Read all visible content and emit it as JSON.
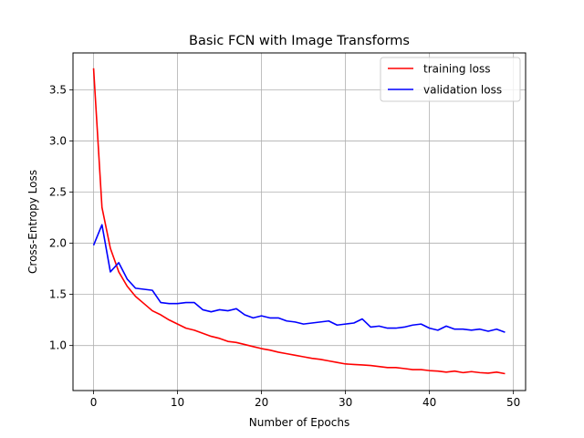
{
  "chart_data": {
    "type": "line",
    "title": "Basic FCN with Image Transforms",
    "xlabel": "Number of Epochs",
    "ylabel": "Cross-Entropy Loss",
    "xlim": [
      -2.45,
      51.45
    ],
    "ylim": [
      0.56,
      3.86
    ],
    "xticks": [
      0,
      10,
      20,
      30,
      40,
      50
    ],
    "yticks": [
      1.0,
      1.5,
      2.0,
      2.5,
      3.0,
      3.5
    ],
    "xtick_labels": [
      "0",
      "10",
      "20",
      "30",
      "40",
      "50"
    ],
    "ytick_labels": [
      "1.0",
      "1.5",
      "2.0",
      "2.5",
      "3.0",
      "3.5"
    ],
    "grid": true,
    "legend_position": "top-right",
    "x": [
      0,
      1,
      2,
      3,
      4,
      5,
      6,
      7,
      8,
      9,
      10,
      11,
      12,
      13,
      14,
      15,
      16,
      17,
      18,
      19,
      20,
      21,
      22,
      23,
      24,
      25,
      26,
      27,
      28,
      29,
      30,
      31,
      32,
      33,
      34,
      35,
      36,
      37,
      38,
      39,
      40,
      41,
      42,
      43,
      44,
      45,
      46,
      47,
      48,
      49
    ],
    "series": [
      {
        "name": "training loss",
        "color": "#ff0000",
        "values": [
          3.71,
          2.35,
          1.95,
          1.72,
          1.58,
          1.48,
          1.41,
          1.34,
          1.3,
          1.25,
          1.21,
          1.17,
          1.15,
          1.12,
          1.09,
          1.07,
          1.04,
          1.03,
          1.01,
          0.99,
          0.97,
          0.955,
          0.935,
          0.92,
          0.905,
          0.89,
          0.875,
          0.865,
          0.85,
          0.835,
          0.82,
          0.815,
          0.81,
          0.805,
          0.795,
          0.785,
          0.785,
          0.775,
          0.765,
          0.765,
          0.755,
          0.75,
          0.74,
          0.75,
          0.735,
          0.745,
          0.735,
          0.73,
          0.74,
          0.725
        ]
      },
      {
        "name": "validation loss",
        "color": "#0000ff",
        "values": [
          1.98,
          2.18,
          1.72,
          1.81,
          1.65,
          1.56,
          1.55,
          1.54,
          1.42,
          1.41,
          1.41,
          1.42,
          1.42,
          1.35,
          1.33,
          1.35,
          1.34,
          1.36,
          1.3,
          1.27,
          1.29,
          1.27,
          1.27,
          1.24,
          1.23,
          1.21,
          1.22,
          1.23,
          1.24,
          1.2,
          1.21,
          1.22,
          1.26,
          1.18,
          1.19,
          1.17,
          1.17,
          1.18,
          1.2,
          1.21,
          1.17,
          1.15,
          1.19,
          1.16,
          1.16,
          1.15,
          1.16,
          1.14,
          1.16,
          1.13
        ]
      }
    ]
  }
}
